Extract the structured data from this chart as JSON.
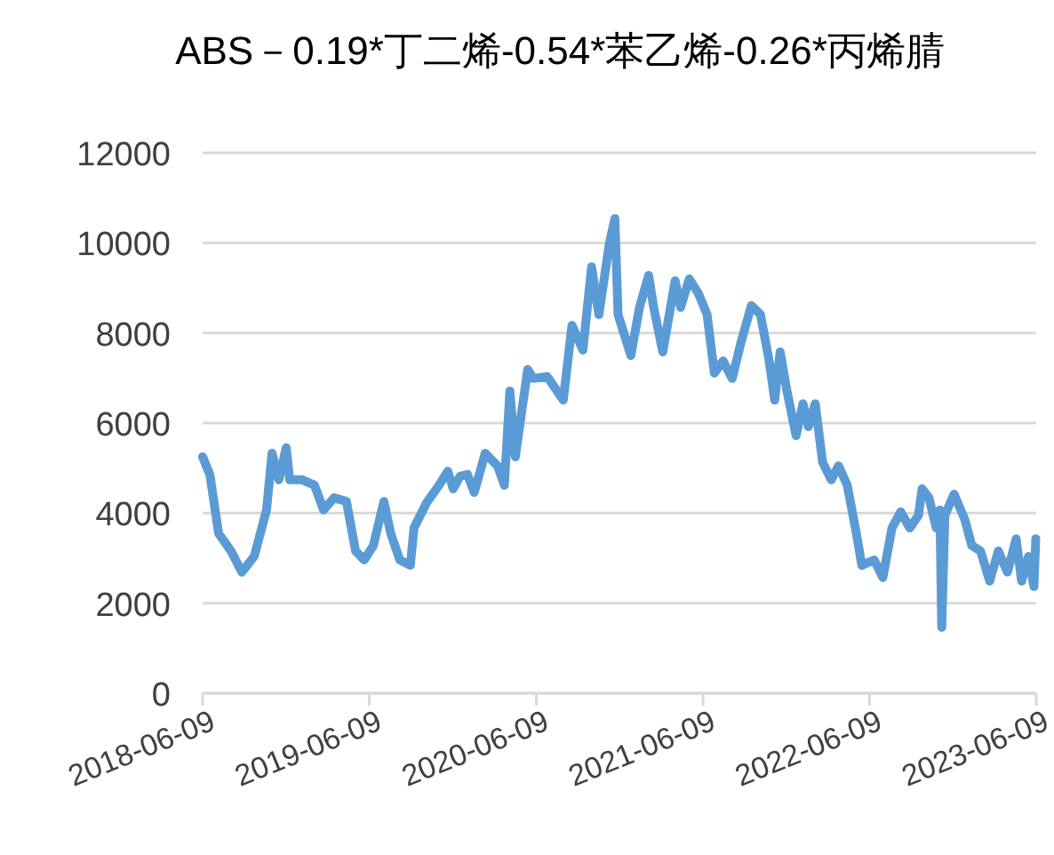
{
  "chart_data": {
    "type": "line",
    "title": "ABS－0.19*丁二烯-0.54*苯乙烯-0.26*丙烯腈",
    "x": [
      "2018-06-09",
      "2018-06-25",
      "2018-07-14",
      "2018-08-10",
      "2018-09-03",
      "2018-09-30",
      "2018-10-27",
      "2018-11-08",
      "2018-11-23",
      "2018-12-09",
      "2018-12-17",
      "2019-01-13",
      "2019-02-09",
      "2019-03-01",
      "2019-03-24",
      "2019-04-20",
      "2019-05-10",
      "2019-05-29",
      "2019-06-18",
      "2019-07-11",
      "2019-07-26",
      "2019-08-15",
      "2019-09-07",
      "2019-09-15",
      "2019-10-12",
      "2019-11-09",
      "2019-11-28",
      "2019-12-10",
      "2019-12-25",
      "2020-01-10",
      "2020-01-25",
      "2020-02-18",
      "2020-03-16",
      "2020-03-31",
      "2020-04-12",
      "2020-04-24",
      "2020-05-21",
      "2020-06-02",
      "2020-07-03",
      "2020-08-07",
      "2020-08-26",
      "2020-09-19",
      "2020-10-08",
      "2020-10-24",
      "2020-11-16",
      "2020-11-28",
      "2020-12-05",
      "2021-01-02",
      "2021-01-21",
      "2021-02-10",
      "2021-02-21",
      "2021-03-13",
      "2021-04-09",
      "2021-04-21",
      "2021-05-10",
      "2021-05-30",
      "2021-06-18",
      "2021-07-04",
      "2021-07-23",
      "2021-08-12",
      "2021-08-31",
      "2021-09-23",
      "2021-10-13",
      "2021-11-01",
      "2021-11-13",
      "2021-11-25",
      "2021-12-10",
      "2021-12-30",
      "2022-01-14",
      "2022-01-26",
      "2022-02-10",
      "2022-02-26",
      "2022-03-17",
      "2022-04-02",
      "2022-04-21",
      "2022-05-11",
      "2022-05-23",
      "2022-06-19",
      "2022-07-08",
      "2022-07-28",
      "2022-08-16",
      "2022-09-05",
      "2022-09-24",
      "2022-10-02",
      "2022-10-17",
      "2022-11-02",
      "2022-11-10",
      "2022-11-14",
      "2022-11-21",
      "2022-12-11",
      "2023-01-03",
      "2023-01-19",
      "2023-02-07",
      "2023-02-27",
      "2023-03-18",
      "2023-04-07",
      "2023-04-26",
      "2023-05-08",
      "2023-05-23",
      "2023-06-04",
      "2023-06-08"
    ],
    "series": [
      {
        "color": "#5b9bd5",
        "values": [
          5250,
          4850,
          3550,
          3160,
          2690,
          3040,
          4070,
          5330,
          4740,
          5450,
          4740,
          4740,
          4620,
          4070,
          4340,
          4260,
          3160,
          2960,
          3280,
          4260,
          3550,
          2960,
          2840,
          3670,
          4220,
          4620,
          4930,
          4540,
          4820,
          4860,
          4460,
          5330,
          5050,
          4620,
          6710,
          5250,
          7190,
          6990,
          7030,
          6510,
          8170,
          7620,
          9470,
          8410,
          9990,
          10540,
          8410,
          7500,
          8570,
          9280,
          8570,
          7580,
          9160,
          8570,
          9200,
          8880,
          8410,
          7110,
          7380,
          6990,
          7780,
          8610,
          8410,
          7380,
          6510,
          7580,
          6710,
          5720,
          6430,
          5920,
          6430,
          5130,
          4740,
          5050,
          4620,
          3550,
          2840,
          2960,
          2570,
          3670,
          4030,
          3670,
          3950,
          4540,
          4340,
          3670,
          4070,
          1460,
          3950,
          4420,
          3870,
          3280,
          3160,
          2490,
          3160,
          2690,
          3430,
          2490,
          3040,
          2370,
          3430
        ]
      }
    ],
    "xlim": [
      "2018-06-09",
      "2023-06-09"
    ],
    "xticks": [
      "2018-06-09",
      "2019-06-09",
      "2020-06-09",
      "2021-06-09",
      "2022-06-09",
      "2023-06-09"
    ],
    "ylim": [
      0,
      12000
    ],
    "yticks": [
      0,
      2000,
      4000,
      6000,
      8000,
      10000,
      12000
    ],
    "grid": "y"
  }
}
